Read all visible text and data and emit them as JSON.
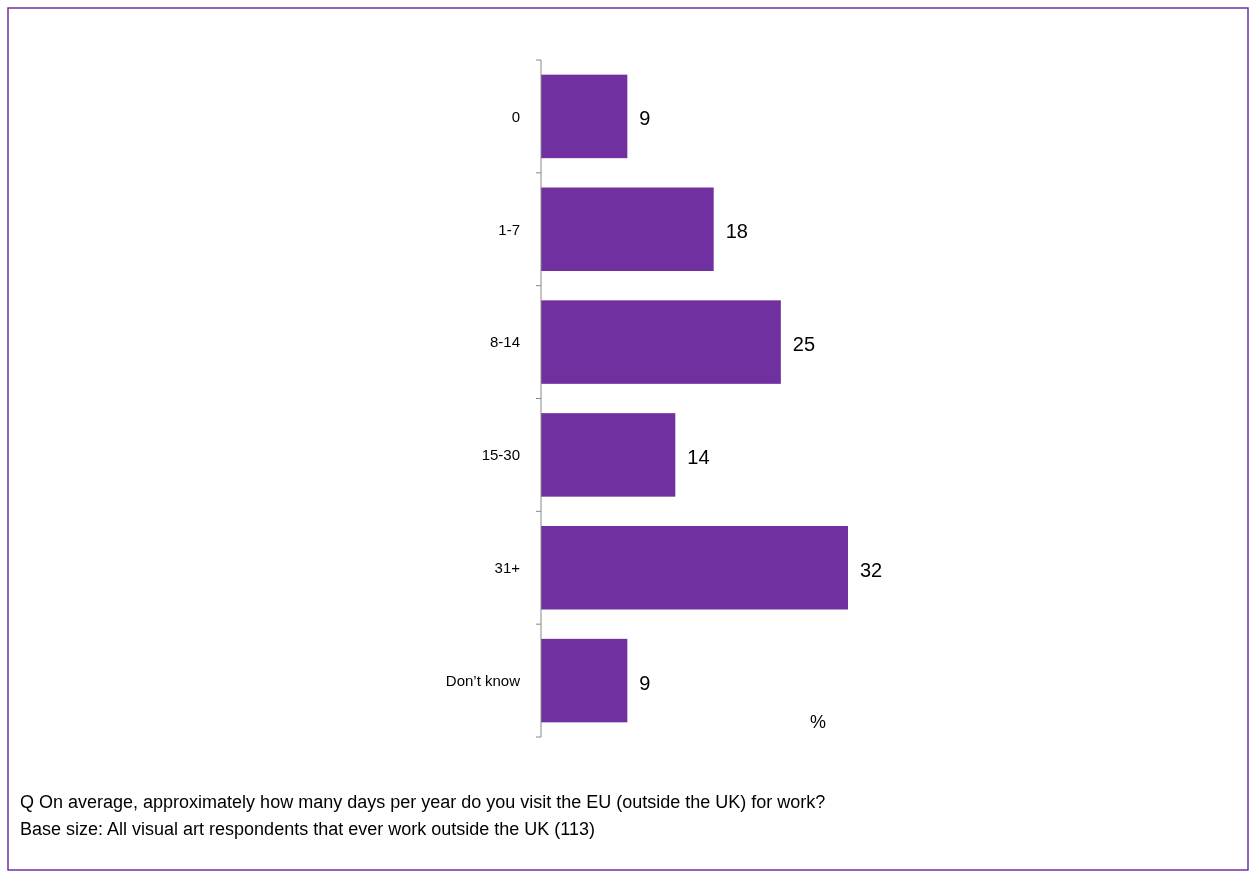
{
  "chart_data": {
    "type": "bar",
    "orientation": "horizontal",
    "categories": [
      "0",
      "1-7",
      "8-14",
      "15-30",
      "31+",
      "Don’t know"
    ],
    "values": [
      9,
      18,
      25,
      14,
      32,
      9
    ],
    "color": "#7030a0",
    "data_labels": true,
    "xlabel": "%",
    "annotations": [
      "Q  On average, approximately how many days per year do you visit the EU (outside the UK) for work?",
      "Base size: All visual art respondents that ever work outside the UK (113)"
    ]
  }
}
